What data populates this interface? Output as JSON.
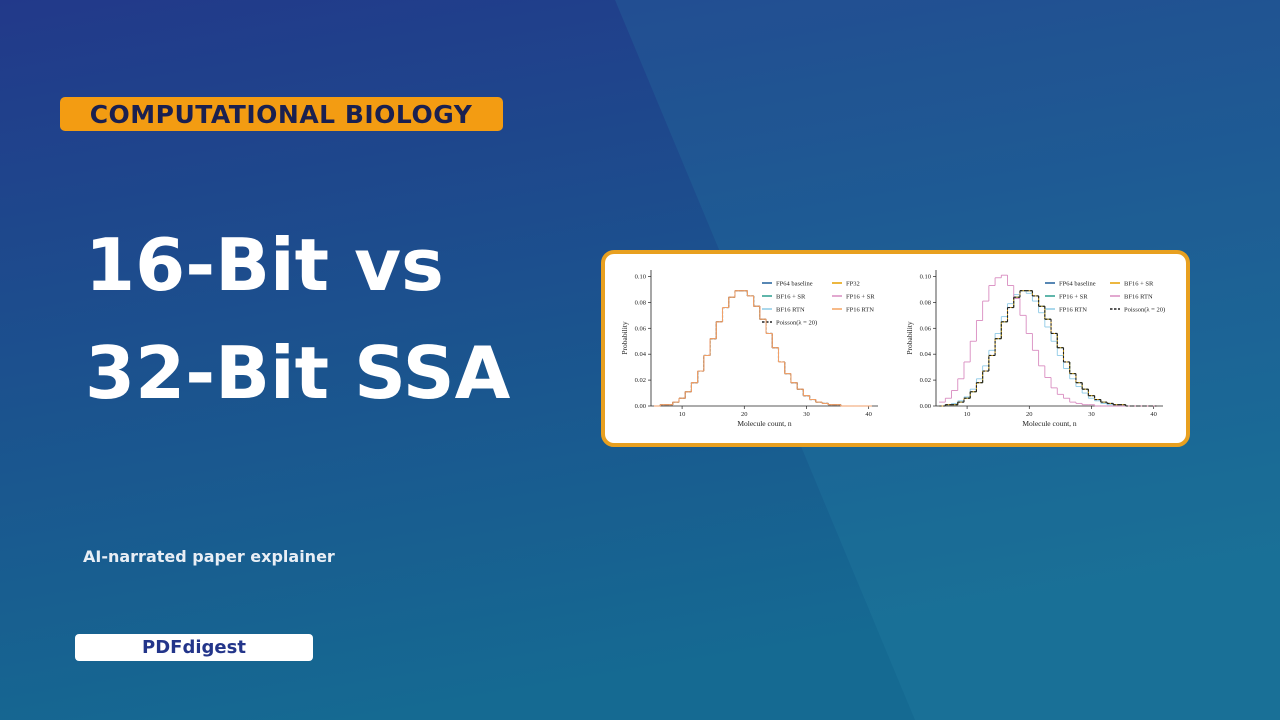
{
  "category_tag": "COMPUTATIONAL BIOLOGY",
  "title_lines": [
    "16-Bit vs",
    "32-Bit SSA"
  ],
  "subtitle": "AI-narrated paper explainer",
  "brand": "PDFdigest",
  "chart_data": [
    {
      "type": "step",
      "xlabel": "Molecule count, n",
      "ylabel": "Probability",
      "x": [
        6,
        7,
        8,
        9,
        10,
        11,
        12,
        13,
        14,
        15,
        16,
        17,
        18,
        19,
        20,
        21,
        22,
        23,
        24,
        25,
        26,
        27,
        28,
        29,
        30,
        31,
        32,
        33,
        34,
        35,
        36,
        37,
        38,
        39,
        40
      ],
      "xlim": [
        5,
        41.5
      ],
      "xticks": [
        10,
        20,
        30,
        40
      ],
      "ylim": [
        0,
        0.105
      ],
      "yticks": [
        {
          "value": 0,
          "label": "0.00"
        },
        {
          "value": 0.02,
          "label": "0.02"
        },
        {
          "value": 0.04,
          "label": "0.04"
        },
        {
          "value": 0.06,
          "label": "0.06"
        },
        {
          "value": 0.08,
          "label": "0.08"
        },
        {
          "value": 0.1,
          "label": "0.10"
        }
      ],
      "series": [
        {
          "name": "FP64 baseline",
          "color": "#1f5f9a",
          "values": [
            0,
            0.001,
            0.001,
            0.003,
            0.006,
            0.011,
            0.018,
            0.027,
            0.039,
            0.052,
            0.065,
            0.076,
            0.084,
            0.089,
            0.089,
            0.085,
            0.077,
            0.067,
            0.056,
            0.045,
            0.034,
            0.025,
            0.018,
            0.013,
            0.008,
            0.005,
            0.003,
            0.002,
            0.001,
            0.001,
            0,
            0,
            0,
            0,
            0
          ]
        },
        {
          "name": "BF16 + SR",
          "color": "#2a9d8f",
          "values": [
            0,
            0.001,
            0.001,
            0.003,
            0.006,
            0.011,
            0.018,
            0.027,
            0.039,
            0.052,
            0.065,
            0.076,
            0.084,
            0.089,
            0.089,
            0.085,
            0.077,
            0.067,
            0.056,
            0.045,
            0.034,
            0.025,
            0.018,
            0.013,
            0.008,
            0.005,
            0.003,
            0.002,
            0.001,
            0.001,
            0,
            0,
            0,
            0,
            0
          ]
        },
        {
          "name": "BF16 RTN",
          "color": "#8ecae6",
          "values": [
            0,
            0.001,
            0.001,
            0.003,
            0.006,
            0.011,
            0.018,
            0.027,
            0.039,
            0.052,
            0.065,
            0.076,
            0.084,
            0.089,
            0.089,
            0.085,
            0.077,
            0.067,
            0.056,
            0.045,
            0.034,
            0.025,
            0.018,
            0.013,
            0.008,
            0.005,
            0.003,
            0.002,
            0.001,
            0.001,
            0,
            0,
            0,
            0,
            0
          ]
        },
        {
          "name": "Poisson(λ = 20)",
          "color": "#222222",
          "dashed": true,
          "values": [
            0,
            0.001,
            0.001,
            0.003,
            0.006,
            0.011,
            0.018,
            0.027,
            0.039,
            0.052,
            0.065,
            0.076,
            0.084,
            0.089,
            0.089,
            0.085,
            0.077,
            0.067,
            0.056,
            0.045,
            0.034,
            0.025,
            0.018,
            0.013,
            0.008,
            0.005,
            0.003,
            0.002,
            0.001,
            0.001,
            0,
            0,
            0,
            0,
            0
          ]
        },
        {
          "name": "FP32",
          "color": "#e69f00",
          "values": [
            0,
            0.001,
            0.001,
            0.003,
            0.006,
            0.011,
            0.018,
            0.027,
            0.039,
            0.052,
            0.065,
            0.076,
            0.084,
            0.089,
            0.089,
            0.085,
            0.077,
            0.067,
            0.056,
            0.045,
            0.034,
            0.025,
            0.018,
            0.013,
            0.008,
            0.005,
            0.003,
            0.002,
            0.001,
            0.001,
            0,
            0,
            0,
            0,
            0
          ]
        },
        {
          "name": "FP16 + SR",
          "color": "#d98cc0",
          "values": [
            0,
            0.001,
            0.001,
            0.003,
            0.006,
            0.011,
            0.018,
            0.027,
            0.039,
            0.052,
            0.065,
            0.076,
            0.084,
            0.089,
            0.089,
            0.085,
            0.077,
            0.067,
            0.056,
            0.045,
            0.034,
            0.025,
            0.018,
            0.013,
            0.008,
            0.005,
            0.003,
            0.002,
            0.001,
            0.001,
            0,
            0,
            0,
            0,
            0
          ]
        },
        {
          "name": "FP16 RTN",
          "color": "#f4a261",
          "values": [
            0,
            0.001,
            0.001,
            0.003,
            0.006,
            0.011,
            0.018,
            0.027,
            0.039,
            0.052,
            0.065,
            0.076,
            0.084,
            0.089,
            0.089,
            0.085,
            0.077,
            0.067,
            0.056,
            0.045,
            0.034,
            0.025,
            0.018,
            0.013,
            0.008,
            0.005,
            0.003,
            0.002,
            0.001,
            0.001,
            0,
            0,
            0,
            0,
            0
          ]
        }
      ]
    },
    {
      "type": "step",
      "xlabel": "Molecule count, n",
      "ylabel": "Probability",
      "x": [
        6,
        7,
        8,
        9,
        10,
        11,
        12,
        13,
        14,
        15,
        16,
        17,
        18,
        19,
        20,
        21,
        22,
        23,
        24,
        25,
        26,
        27,
        28,
        29,
        30,
        31,
        32,
        33,
        34,
        35,
        36,
        37,
        38,
        39,
        40
      ],
      "xlim": [
        5,
        41.5
      ],
      "xticks": [
        10,
        20,
        30,
        40
      ],
      "ylim": [
        0,
        0.105
      ],
      "yticks": [
        {
          "value": 0,
          "label": "0.00"
        },
        {
          "value": 0.02,
          "label": "0.02"
        },
        {
          "value": 0.04,
          "label": "0.04"
        },
        {
          "value": 0.06,
          "label": "0.06"
        },
        {
          "value": 0.08,
          "label": "0.08"
        },
        {
          "value": 0.1,
          "label": "0.10"
        }
      ],
      "series": [
        {
          "name": "FP64 baseline",
          "color": "#1f5f9a",
          "values": [
            0,
            0.001,
            0.001,
            0.003,
            0.006,
            0.011,
            0.018,
            0.027,
            0.039,
            0.052,
            0.065,
            0.076,
            0.084,
            0.089,
            0.089,
            0.085,
            0.077,
            0.067,
            0.056,
            0.045,
            0.034,
            0.025,
            0.018,
            0.013,
            0.008,
            0.005,
            0.003,
            0.002,
            0.001,
            0.001,
            0,
            0,
            0,
            0,
            0
          ]
        },
        {
          "name": "FP16 + SR",
          "color": "#2a9d8f",
          "values": [
            0,
            0.001,
            0.001,
            0.003,
            0.006,
            0.011,
            0.018,
            0.027,
            0.039,
            0.052,
            0.065,
            0.076,
            0.084,
            0.089,
            0.089,
            0.085,
            0.077,
            0.067,
            0.056,
            0.045,
            0.034,
            0.025,
            0.018,
            0.013,
            0.008,
            0.005,
            0.003,
            0.002,
            0.001,
            0.001,
            0,
            0,
            0,
            0,
            0
          ]
        },
        {
          "name": "FP16 RTN",
          "color": "#8ecae6",
          "values": [
            0,
            0.001,
            0.002,
            0.004,
            0.007,
            0.013,
            0.021,
            0.031,
            0.043,
            0.056,
            0.069,
            0.079,
            0.086,
            0.089,
            0.087,
            0.081,
            0.072,
            0.061,
            0.05,
            0.039,
            0.029,
            0.021,
            0.015,
            0.01,
            0.006,
            0.004,
            0.002,
            0.001,
            0.001,
            0,
            0,
            0,
            0,
            0,
            0
          ]
        },
        {
          "name": "BF16 + SR",
          "color": "#e69f00",
          "values": [
            0,
            0.001,
            0.001,
            0.003,
            0.006,
            0.011,
            0.018,
            0.027,
            0.039,
            0.052,
            0.065,
            0.076,
            0.084,
            0.089,
            0.089,
            0.085,
            0.077,
            0.067,
            0.056,
            0.045,
            0.034,
            0.025,
            0.018,
            0.013,
            0.008,
            0.005,
            0.003,
            0.002,
            0.001,
            0.001,
            0,
            0,
            0,
            0,
            0
          ]
        },
        {
          "name": "BF16 RTN",
          "color": "#d98cc0",
          "values": [
            0.003,
            0.006,
            0.012,
            0.021,
            0.034,
            0.05,
            0.066,
            0.081,
            0.093,
            0.099,
            0.101,
            0.093,
            0.083,
            0.07,
            0.056,
            0.043,
            0.031,
            0.022,
            0.014,
            0.009,
            0.006,
            0.003,
            0.002,
            0.001,
            0.001,
            0,
            0,
            0,
            0,
            0,
            0,
            0,
            0,
            0,
            0
          ]
        },
        {
          "name": "Poisson(λ = 20)",
          "color": "#222222",
          "dashed": true,
          "values": [
            0,
            0.001,
            0.001,
            0.003,
            0.006,
            0.011,
            0.018,
            0.027,
            0.039,
            0.052,
            0.065,
            0.076,
            0.084,
            0.089,
            0.089,
            0.085,
            0.077,
            0.067,
            0.056,
            0.045,
            0.034,
            0.025,
            0.018,
            0.013,
            0.008,
            0.005,
            0.003,
            0.002,
            0.001,
            0.001,
            0,
            0,
            0,
            0,
            0
          ]
        }
      ]
    }
  ]
}
